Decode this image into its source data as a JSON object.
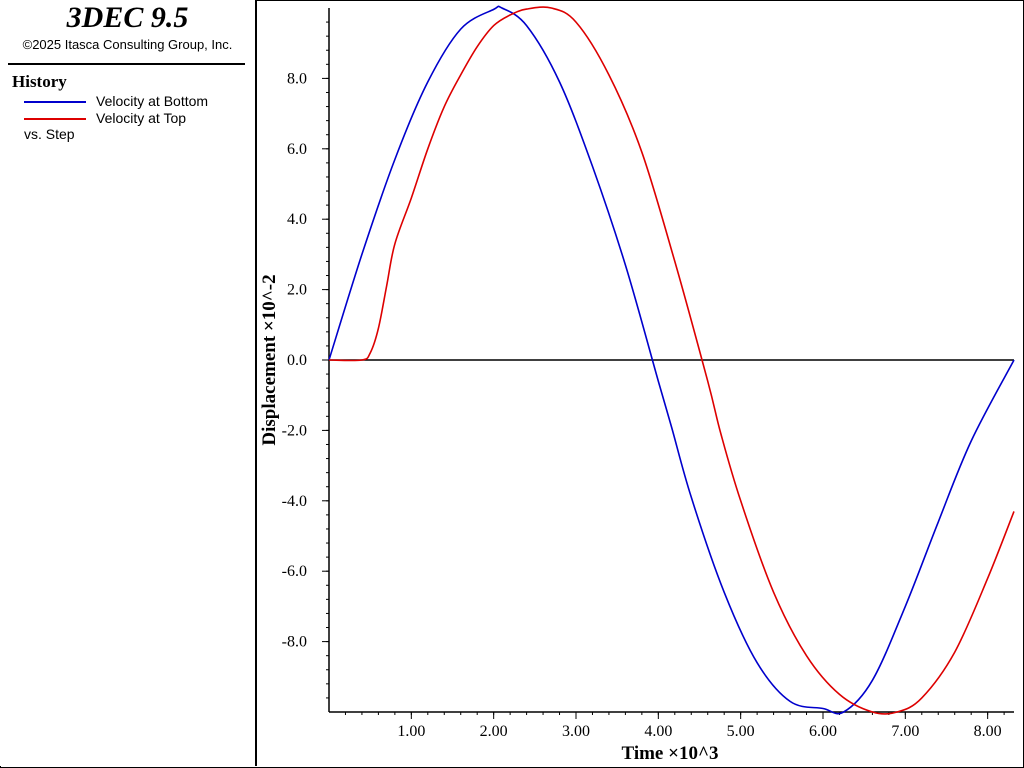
{
  "app": {
    "title": "3DEC 9.5",
    "copyright": "©2025 Itasca Consulting Group, Inc."
  },
  "legend": {
    "heading": "History",
    "entries": [
      {
        "label": "Velocity at Bottom",
        "color": "#0000cc"
      },
      {
        "label": "Velocity at Top",
        "color": "#dd0000"
      }
    ],
    "vs_label": "vs. Step"
  },
  "chart_data": {
    "type": "line",
    "xlabel": "Time ×10^3",
    "ylabel": "Displacement ×10^-2",
    "xlim": [
      0,
      8.32
    ],
    "ylim": [
      -10.0,
      10.0
    ],
    "x_ticks": [
      1.0,
      2.0,
      3.0,
      4.0,
      5.0,
      6.0,
      7.0,
      8.0
    ],
    "x_tick_labels": [
      "1.00",
      "2.00",
      "3.00",
      "4.00",
      "5.00",
      "6.00",
      "7.00",
      "8.00"
    ],
    "y_ticks": [
      8,
      6,
      4,
      2,
      0,
      -2,
      -4,
      -6,
      -8
    ],
    "y_tick_labels": [
      "8.0",
      "6.0",
      "4.0",
      "2.0",
      "0.0",
      "-2.0",
      "-4.0",
      "-6.0",
      "-8.0"
    ],
    "zero_line": true,
    "series": [
      {
        "name": "Velocity at Bottom",
        "color": "#0000cc",
        "x": [
          0.0,
          0.4,
          0.8,
          1.2,
          1.6,
          2.0,
          2.1,
          2.4,
          2.8,
          3.2,
          3.6,
          4.0,
          4.16,
          4.4,
          4.8,
          5.2,
          5.6,
          6.0,
          6.25,
          6.6,
          7.0,
          7.4,
          7.8,
          8.32
        ],
        "y": [
          0.0,
          3.0,
          5.7,
          7.9,
          9.4,
          9.96,
          10.0,
          9.5,
          7.9,
          5.5,
          2.7,
          -0.6,
          -1.9,
          -3.9,
          -6.6,
          -8.6,
          -9.7,
          -9.9,
          -10.0,
          -9.1,
          -7.0,
          -4.6,
          -2.3,
          0.0
        ]
      },
      {
        "name": "Velocity at Top",
        "color": "#dd0000",
        "x": [
          0.0,
          0.4,
          0.5,
          0.6,
          0.7,
          0.8,
          1.0,
          1.2,
          1.4,
          1.6,
          1.8,
          2.0,
          2.2,
          2.4,
          2.7,
          3.0,
          3.4,
          3.8,
          4.2,
          4.6,
          4.76,
          5.0,
          5.4,
          5.8,
          6.2,
          6.6,
          6.9,
          7.2,
          7.6,
          8.0,
          8.32
        ],
        "y": [
          0.0,
          0.0,
          0.2,
          0.9,
          2.1,
          3.3,
          4.6,
          6.0,
          7.2,
          8.1,
          8.9,
          9.5,
          9.8,
          9.97,
          10.0,
          9.6,
          8.1,
          5.9,
          2.8,
          -0.6,
          -2.1,
          -4.0,
          -6.6,
          -8.4,
          -9.5,
          -10.0,
          -10.0,
          -9.6,
          -8.3,
          -6.2,
          -4.3
        ]
      }
    ]
  }
}
